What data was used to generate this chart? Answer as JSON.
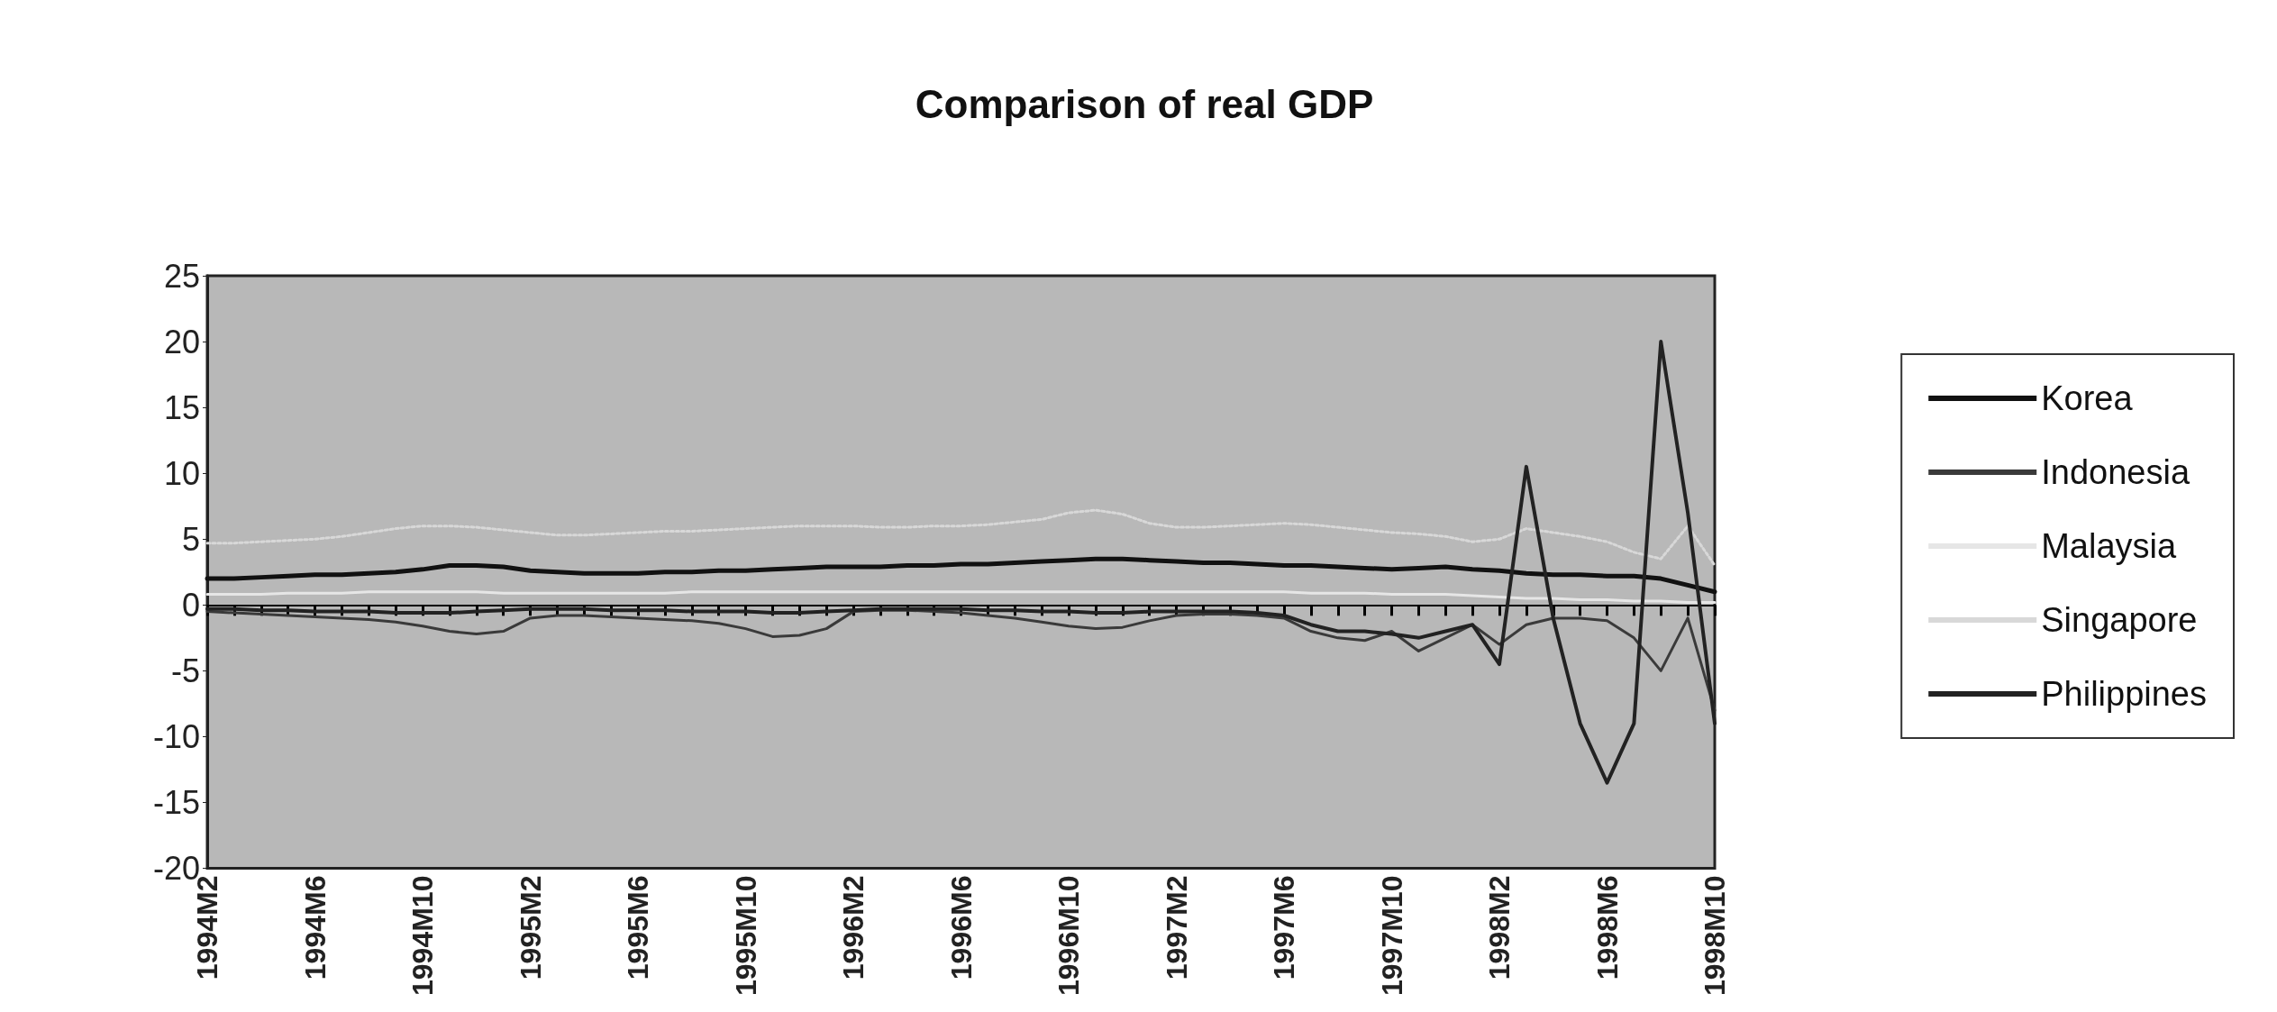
{
  "chart_data": {
    "type": "line",
    "title": "Comparison of real GDP",
    "categories": [
      "1994M2",
      null,
      null,
      null,
      "1994M6",
      null,
      null,
      null,
      "1994M10",
      null,
      null,
      null,
      "1995M2",
      null,
      null,
      null,
      "1995M6",
      null,
      null,
      null,
      "1995M10",
      null,
      null,
      null,
      "1996M2",
      null,
      null,
      null,
      "1996M6",
      null,
      null,
      null,
      "1996M10",
      null,
      null,
      null,
      "1997M2",
      null,
      null,
      null,
      "1997M6",
      null,
      null,
      null,
      "1997M10",
      null,
      null,
      null,
      "1998M2",
      null,
      null,
      null,
      "1998M6",
      null,
      null,
      null,
      "1998M10"
    ],
    "series": [
      {
        "name": "Korea",
        "color": "#111111",
        "values": [
          2.0,
          2.0,
          2.1,
          2.2,
          2.3,
          2.3,
          2.4,
          2.5,
          2.7,
          3.0,
          3.0,
          2.9,
          2.6,
          2.5,
          2.4,
          2.4,
          2.4,
          2.5,
          2.5,
          2.6,
          2.6,
          2.7,
          2.8,
          2.9,
          2.9,
          2.9,
          3.0,
          3.0,
          3.1,
          3.1,
          3.2,
          3.3,
          3.4,
          3.5,
          3.5,
          3.4,
          3.3,
          3.2,
          3.2,
          3.1,
          3.0,
          3.0,
          2.9,
          2.8,
          2.7,
          2.8,
          2.9,
          2.7,
          2.6,
          2.4,
          2.3,
          2.3,
          2.2,
          2.2,
          2.0,
          1.5,
          1.0
        ]
      },
      {
        "name": "Indonesia",
        "color": "#3a3a3a",
        "values": [
          -0.5,
          -0.6,
          -0.7,
          -0.8,
          -0.9,
          -1.0,
          -1.1,
          -1.3,
          -1.6,
          -2.0,
          -2.2,
          -2.0,
          -1.0,
          -0.8,
          -0.8,
          -0.9,
          -1.0,
          -1.1,
          -1.2,
          -1.4,
          -1.8,
          -2.4,
          -2.3,
          -1.8,
          -0.5,
          -0.4,
          -0.4,
          -0.5,
          -0.6,
          -0.8,
          -1.0,
          -1.3,
          -1.6,
          -1.8,
          -1.7,
          -1.2,
          -0.8,
          -0.7,
          -0.7,
          -0.8,
          -1.0,
          -2.0,
          -2.5,
          -2.7,
          -2.0,
          -3.5,
          -2.5,
          -1.5,
          -3.0,
          -1.5,
          -1.0,
          -1.0,
          -1.2,
          -2.5,
          -5.0,
          -1.0,
          -8.0
        ]
      },
      {
        "name": "Malaysia",
        "color": "#e6e6e6",
        "values": [
          0.8,
          0.8,
          0.8,
          0.9,
          0.9,
          0.9,
          1.0,
          1.0,
          1.0,
          1.0,
          1.0,
          0.9,
          0.9,
          0.9,
          0.9,
          0.9,
          0.9,
          0.9,
          1.0,
          1.0,
          1.0,
          1.0,
          1.0,
          1.0,
          1.0,
          1.0,
          1.0,
          1.0,
          1.0,
          1.0,
          1.0,
          1.0,
          1.0,
          1.0,
          1.0,
          1.0,
          1.0,
          1.0,
          1.0,
          1.0,
          1.0,
          0.9,
          0.9,
          0.9,
          0.8,
          0.8,
          0.8,
          0.7,
          0.6,
          0.5,
          0.5,
          0.4,
          0.4,
          0.3,
          0.3,
          0.2,
          0.2
        ]
      },
      {
        "name": "Singapore",
        "color": "#d8d8d8",
        "line_style": "dotted",
        "values": [
          4.7,
          4.7,
          4.8,
          4.9,
          5.0,
          5.2,
          5.5,
          5.8,
          6.0,
          6.0,
          5.9,
          5.7,
          5.5,
          5.3,
          5.3,
          5.4,
          5.5,
          5.6,
          5.6,
          5.7,
          5.8,
          5.9,
          6.0,
          6.0,
          6.0,
          5.9,
          5.9,
          6.0,
          6.0,
          6.1,
          6.3,
          6.5,
          7.0,
          7.2,
          6.9,
          6.2,
          5.9,
          5.9,
          6.0,
          6.1,
          6.2,
          6.1,
          5.9,
          5.7,
          5.5,
          5.4,
          5.2,
          4.8,
          5.0,
          5.8,
          5.5,
          5.2,
          4.8,
          4.0,
          3.5,
          6.0,
          3.0
        ]
      },
      {
        "name": "Philippines",
        "color": "#222222",
        "values": [
          -0.3,
          -0.3,
          -0.4,
          -0.4,
          -0.5,
          -0.5,
          -0.5,
          -0.6,
          -0.6,
          -0.6,
          -0.5,
          -0.4,
          -0.3,
          -0.3,
          -0.3,
          -0.4,
          -0.4,
          -0.4,
          -0.5,
          -0.5,
          -0.5,
          -0.6,
          -0.6,
          -0.5,
          -0.4,
          -0.3,
          -0.3,
          -0.3,
          -0.3,
          -0.4,
          -0.4,
          -0.5,
          -0.5,
          -0.6,
          -0.6,
          -0.5,
          -0.5,
          -0.5,
          -0.5,
          -0.6,
          -0.8,
          -1.5,
          -2.0,
          -2.0,
          -2.2,
          -2.5,
          -2.0,
          -1.5,
          -4.5,
          10.5,
          -1.0,
          -9.0,
          -13.5,
          -9.0,
          20.0,
          7.0,
          -9.0
        ]
      }
    ],
    "ylim": [
      -20,
      25
    ],
    "yticks": [
      -20,
      -15,
      -10,
      -5,
      0,
      5,
      10,
      15,
      20,
      25
    ],
    "legend": "right"
  }
}
